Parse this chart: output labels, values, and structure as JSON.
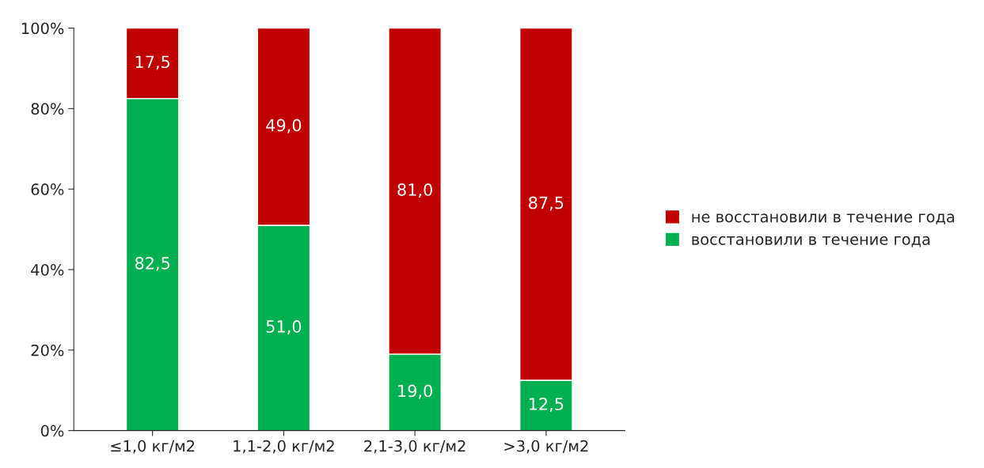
{
  "chart_data": {
    "type": "bar",
    "stacked": true,
    "categories": [
      "≤1,0 кг/м2",
      "1,1-2,0 кг/м2",
      "2,1-3,0 кг/м2",
      ">3,0 кг/м2"
    ],
    "series": [
      {
        "name": "восстановили в течение года",
        "color": "#00b050",
        "values": [
          82.5,
          51.0,
          19.0,
          12.5
        ],
        "value_labels": [
          "82,5",
          "51,0",
          "19,0",
          "12,5"
        ]
      },
      {
        "name": "не восстановили в течение года",
        "color": "#c00000",
        "values": [
          17.5,
          49.0,
          81.0,
          87.5
        ],
        "value_labels": [
          "17,5",
          "49,0",
          "81,0",
          "87,5"
        ]
      }
    ],
    "ylim": [
      0,
      100
    ],
    "yticks": [
      {
        "value": 0,
        "label": "0%"
      },
      {
        "value": 20,
        "label": "20%"
      },
      {
        "value": 40,
        "label": "40%"
      },
      {
        "value": 60,
        "label": "60%"
      },
      {
        "value": 80,
        "label": "80%"
      },
      {
        "value": 100,
        "label": "100%"
      }
    ],
    "grid": false,
    "legend": "right"
  }
}
